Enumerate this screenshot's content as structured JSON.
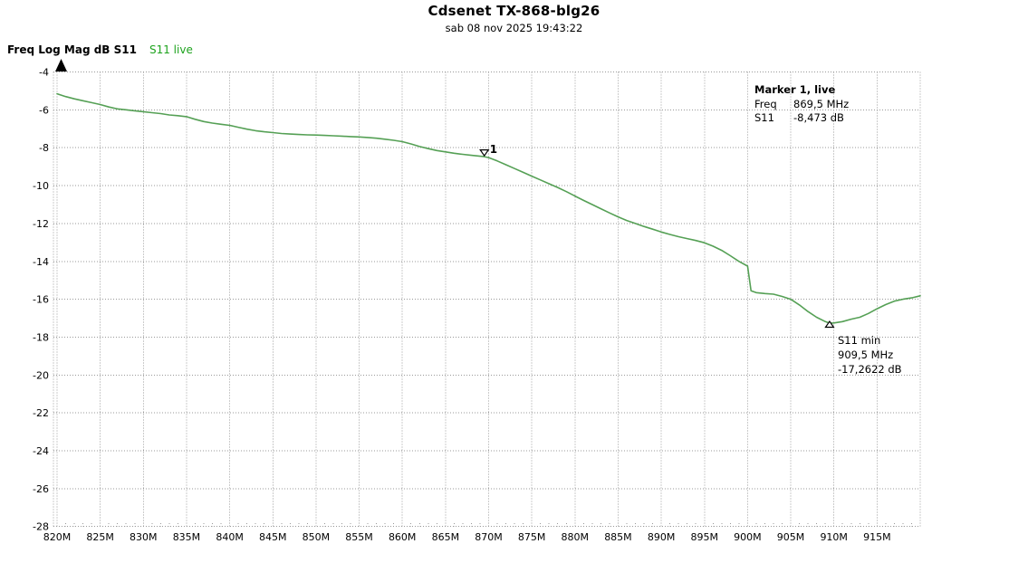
{
  "header": {
    "title": "Cdsenet TX-868-blg26",
    "subtitle": "sab 08 nov 2025 19:43:22"
  },
  "legend": {
    "axis_label": "Freq Log Mag dB S11",
    "trace_label": "S11 live"
  },
  "marker_info": {
    "title": "Marker 1, live",
    "rows": [
      {
        "label": "Freq",
        "value": "869,5 MHz"
      },
      {
        "label": "S11",
        "value": "-8,473 dB"
      }
    ]
  },
  "min_annotation": {
    "line1": "S11 min",
    "line2": "909,5 MHz",
    "line3": "-17,2622 dB"
  },
  "colors": {
    "trace": "#4c9b4c",
    "legend_trace": "#1ea31e",
    "grid": "#999999",
    "text": "#000000",
    "marker_outline": "#000000"
  },
  "chart_data": {
    "type": "line",
    "title": "Cdsenet TX-868-blg26",
    "xlabel": "Freq",
    "ylabel": "Log Mag dB S11",
    "x_unit": "MHz",
    "y_unit": "dB",
    "xlim": [
      820,
      920
    ],
    "ylim": [
      -28,
      -4
    ],
    "x_tick_step_mhz": 5,
    "y_tick_step_db": 2,
    "grid": true,
    "x_tick_labels": [
      "820M",
      "825M",
      "830M",
      "835M",
      "840M",
      "845M",
      "850M",
      "855M",
      "860M",
      "865M",
      "870M",
      "875M",
      "880M",
      "885M",
      "890M",
      "895M",
      "900M",
      "905M",
      "910M",
      "915M"
    ],
    "y_tick_labels": [
      "-4",
      "-6",
      "-8",
      "-10",
      "-12",
      "-14",
      "-16",
      "-18",
      "-20",
      "-22",
      "-24",
      "-26",
      "-28"
    ],
    "series": [
      {
        "name": "S11 live",
        "points": [
          [
            820,
            -5.15
          ],
          [
            821,
            -5.3
          ],
          [
            822,
            -5.42
          ],
          [
            823,
            -5.52
          ],
          [
            824,
            -5.62
          ],
          [
            825,
            -5.72
          ],
          [
            826,
            -5.85
          ],
          [
            827,
            -5.95
          ],
          [
            828,
            -6.0
          ],
          [
            829,
            -6.05
          ],
          [
            830,
            -6.1
          ],
          [
            831,
            -6.15
          ],
          [
            832,
            -6.2
          ],
          [
            833,
            -6.27
          ],
          [
            834,
            -6.31
          ],
          [
            835,
            -6.36
          ],
          [
            836,
            -6.5
          ],
          [
            837,
            -6.62
          ],
          [
            838,
            -6.7
          ],
          [
            839,
            -6.76
          ],
          [
            840,
            -6.82
          ],
          [
            841,
            -6.92
          ],
          [
            842,
            -7.02
          ],
          [
            843,
            -7.1
          ],
          [
            844,
            -7.16
          ],
          [
            845,
            -7.2
          ],
          [
            846,
            -7.25
          ],
          [
            847,
            -7.28
          ],
          [
            848,
            -7.3
          ],
          [
            849,
            -7.32
          ],
          [
            850,
            -7.33
          ],
          [
            851,
            -7.35
          ],
          [
            852,
            -7.37
          ],
          [
            853,
            -7.39
          ],
          [
            854,
            -7.41
          ],
          [
            855,
            -7.43
          ],
          [
            856,
            -7.46
          ],
          [
            857,
            -7.5
          ],
          [
            858,
            -7.55
          ],
          [
            859,
            -7.61
          ],
          [
            860,
            -7.68
          ],
          [
            861,
            -7.8
          ],
          [
            862,
            -7.94
          ],
          [
            863,
            -8.05
          ],
          [
            864,
            -8.15
          ],
          [
            865,
            -8.22
          ],
          [
            866,
            -8.29
          ],
          [
            867,
            -8.35
          ],
          [
            868,
            -8.4
          ],
          [
            869,
            -8.45
          ],
          [
            869.5,
            -8.473
          ],
          [
            870,
            -8.52
          ],
          [
            871,
            -8.7
          ],
          [
            872,
            -8.9
          ],
          [
            873,
            -9.1
          ],
          [
            874,
            -9.3
          ],
          [
            875,
            -9.5
          ],
          [
            876,
            -9.7
          ],
          [
            877,
            -9.9
          ],
          [
            878,
            -10.1
          ],
          [
            879,
            -10.32
          ],
          [
            880,
            -10.55
          ],
          [
            881,
            -10.78
          ],
          [
            882,
            -11.0
          ],
          [
            883,
            -11.22
          ],
          [
            884,
            -11.44
          ],
          [
            885,
            -11.65
          ],
          [
            886,
            -11.84
          ],
          [
            887,
            -12.0
          ],
          [
            888,
            -12.16
          ],
          [
            889,
            -12.3
          ],
          [
            890,
            -12.45
          ],
          [
            891,
            -12.58
          ],
          [
            892,
            -12.7
          ],
          [
            893,
            -12.8
          ],
          [
            894,
            -12.9
          ],
          [
            895,
            -13.02
          ],
          [
            896,
            -13.2
          ],
          [
            897,
            -13.42
          ],
          [
            898,
            -13.7
          ],
          [
            899,
            -14.0
          ],
          [
            900,
            -14.25
          ],
          [
            900.4,
            -15.55
          ],
          [
            901,
            -15.65
          ],
          [
            902,
            -15.7
          ],
          [
            903,
            -15.73
          ],
          [
            904,
            -15.85
          ],
          [
            905,
            -16.0
          ],
          [
            906,
            -16.3
          ],
          [
            907,
            -16.65
          ],
          [
            908,
            -16.95
          ],
          [
            909,
            -17.18
          ],
          [
            909.5,
            -17.2622
          ],
          [
            910,
            -17.25
          ],
          [
            911,
            -17.18
          ],
          [
            912,
            -17.05
          ],
          [
            913,
            -16.95
          ],
          [
            914,
            -16.75
          ],
          [
            915,
            -16.5
          ],
          [
            916,
            -16.28
          ],
          [
            917,
            -16.1
          ],
          [
            918,
            -16.0
          ],
          [
            919,
            -15.93
          ],
          [
            920,
            -15.82
          ]
        ]
      }
    ],
    "markers": [
      {
        "name": "Marker 1",
        "label": "1",
        "freq_mhz": 869.5,
        "s11_db": -8.473,
        "glyph": "triangle-down-open"
      },
      {
        "name": "S11 min",
        "label": "",
        "freq_mhz": 909.5,
        "s11_db": -17.2622,
        "glyph": "triangle-up-open"
      }
    ],
    "reference_level_db": -4
  }
}
